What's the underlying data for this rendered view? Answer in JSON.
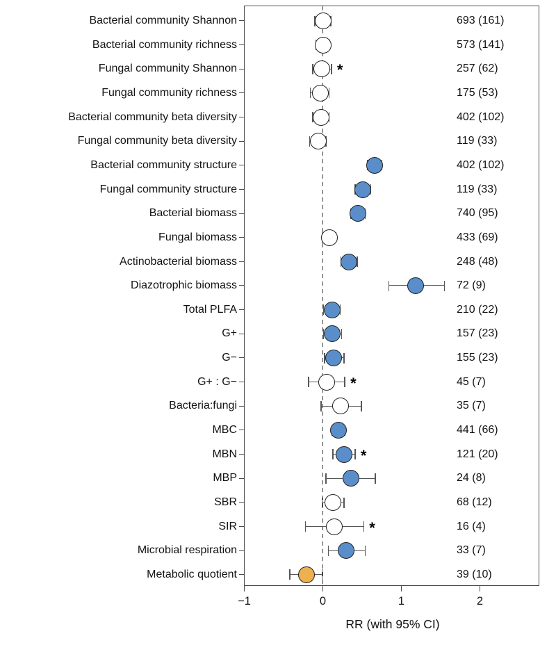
{
  "chart_data": {
    "type": "scatter",
    "subtype": "forest-plot",
    "title": "",
    "xlabel": "RR (with 95% CI)",
    "ylabel": "",
    "xlim": [
      -1,
      2.77
    ],
    "x_ticks": [
      {
        "value": -1,
        "label": "−1"
      },
      {
        "value": 0,
        "label": "0"
      },
      {
        "value": 1,
        "label": "1"
      },
      {
        "value": 2,
        "label": "2"
      }
    ],
    "reference_line_x": 0,
    "grid": false,
    "legend_position": "none",
    "significance_marker": "*",
    "colors": {
      "blue": "#5a8ecb",
      "orange": "#edb04e",
      "white": "#ffffff",
      "marker_stroke": "#1f1f1f",
      "whisker": "#565656",
      "frame": "#4a4a4a"
    },
    "rows": [
      {
        "label": "Bacterial community Shannon",
        "n": "693 (161)",
        "rr": 0.0,
        "ci": [
          -0.1,
          0.1
        ],
        "fill": "white",
        "significant": false
      },
      {
        "label": "Bacterial community richness",
        "n": "573 (141)",
        "rr": 0.0,
        "ci": [
          -0.09,
          0.09
        ],
        "fill": "white",
        "significant": false
      },
      {
        "label": "Fungal community Shannon",
        "n": "257 (62)",
        "rr": -0.01,
        "ci": [
          -0.13,
          0.11
        ],
        "fill": "white",
        "significant": true
      },
      {
        "label": "Fungal community richness",
        "n": "175 (53)",
        "rr": -0.03,
        "ci": [
          -0.16,
          0.08
        ],
        "fill": "white",
        "significant": false
      },
      {
        "label": "Bacterial community beta diversity",
        "n": "402 (102)",
        "rr": -0.02,
        "ci": [
          -0.13,
          0.08
        ],
        "fill": "white",
        "significant": false
      },
      {
        "label": "Fungal community beta diversity",
        "n": "119 (33)",
        "rr": -0.06,
        "ci": [
          -0.17,
          0.04
        ],
        "fill": "white",
        "significant": false
      },
      {
        "label": "Bacterial community structure",
        "n": "402 (102)",
        "rr": 0.66,
        "ci": [
          0.57,
          0.75
        ],
        "fill": "blue",
        "significant": false
      },
      {
        "label": "Fungal community structure",
        "n": "119 (33)",
        "rr": 0.51,
        "ci": [
          0.41,
          0.61
        ],
        "fill": "blue",
        "significant": false
      },
      {
        "label": "Bacterial biomass",
        "n": "740 (95)",
        "rr": 0.45,
        "ci": [
          0.36,
          0.54
        ],
        "fill": "blue",
        "significant": false
      },
      {
        "label": "Fungal biomass",
        "n": "433 (69)",
        "rr": 0.08,
        "ci": [
          -0.01,
          0.17
        ],
        "fill": "white",
        "significant": false
      },
      {
        "label": "Actinobacterial biomass",
        "n": "248 (48)",
        "rr": 0.33,
        "ci": [
          0.23,
          0.44
        ],
        "fill": "blue",
        "significant": false
      },
      {
        "label": "Diazotrophic biomass",
        "n": "72 (9)",
        "rr": 1.18,
        "ci": [
          0.84,
          1.55
        ],
        "fill": "blue",
        "significant": false
      },
      {
        "label": "Total PLFA",
        "n": "210 (22)",
        "rr": 0.12,
        "ci": [
          0.01,
          0.22
        ],
        "fill": "blue",
        "significant": false
      },
      {
        "label": "G+",
        "n": "157 (23)",
        "rr": 0.12,
        "ci": [
          0.01,
          0.24
        ],
        "fill": "blue",
        "significant": false
      },
      {
        "label": "G−",
        "n": "155 (23)",
        "rr": 0.14,
        "ci": [
          0.02,
          0.27
        ],
        "fill": "blue",
        "significant": false
      },
      {
        "label": "G+ : G−",
        "n": "45 (7)",
        "rr": 0.05,
        "ci": [
          -0.18,
          0.28
        ],
        "fill": "white",
        "significant": true
      },
      {
        "label": "Bacteria:fungi",
        "n": "35 (7)",
        "rr": 0.23,
        "ci": [
          -0.02,
          0.49
        ],
        "fill": "white",
        "significant": false
      },
      {
        "label": "MBC",
        "n": "441 (66)",
        "rr": 0.2,
        "ci": [
          0.12,
          0.28
        ],
        "fill": "blue",
        "significant": false
      },
      {
        "label": "MBN",
        "n": "121 (20)",
        "rr": 0.27,
        "ci": [
          0.13,
          0.41
        ],
        "fill": "blue",
        "significant": true
      },
      {
        "label": "MBP",
        "n": "24 (8)",
        "rr": 0.36,
        "ci": [
          0.04,
          0.67
        ],
        "fill": "blue",
        "significant": false
      },
      {
        "label": "SBR",
        "n": "68 (12)",
        "rr": 0.13,
        "ci": [
          -0.01,
          0.27
        ],
        "fill": "white",
        "significant": false
      },
      {
        "label": "SIR",
        "n": "16 (4)",
        "rr": 0.15,
        "ci": [
          -0.22,
          0.52
        ],
        "fill": "white",
        "significant": true
      },
      {
        "label": "Microbial respiration",
        "n": "33 (7)",
        "rr": 0.3,
        "ci": [
          0.07,
          0.54
        ],
        "fill": "blue",
        "significant": false
      },
      {
        "label": "Metabolic quotient",
        "n": "39 (10)",
        "rr": -0.21,
        "ci": [
          -0.42,
          -0.01
        ],
        "fill": "orange",
        "significant": false
      }
    ]
  }
}
